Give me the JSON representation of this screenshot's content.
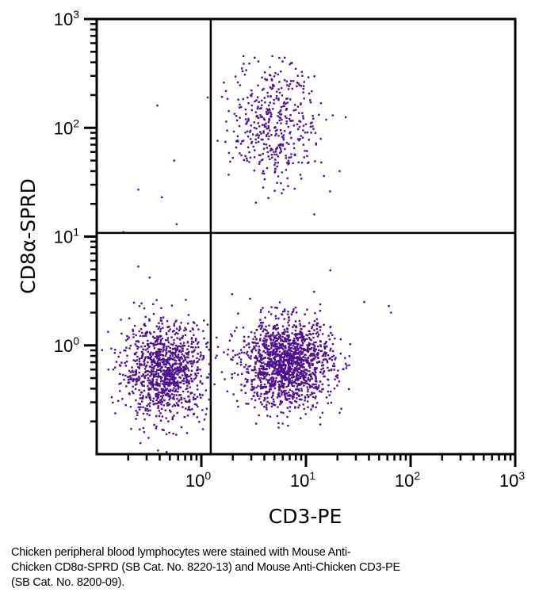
{
  "chart_data": {
    "type": "scatter",
    "subtype": "flow-cytometry-dot-plot",
    "xlabel": "CD3-PE",
    "ylabel": "CD8α-SPRD",
    "xscale": "log",
    "yscale": "log",
    "xlim": [
      0.1,
      1000
    ],
    "ylim": [
      0.1,
      1000
    ],
    "x_ticks": [
      {
        "value": 1,
        "base": "10",
        "exp": "0"
      },
      {
        "value": 10,
        "base": "10",
        "exp": "1"
      },
      {
        "value": 100,
        "base": "10",
        "exp": "2"
      },
      {
        "value": 1000,
        "base": "10",
        "exp": "3"
      }
    ],
    "y_ticks": [
      {
        "value": 1,
        "base": "10",
        "exp": "0"
      },
      {
        "value": 10,
        "base": "10",
        "exp": "1"
      },
      {
        "value": 100,
        "base": "10",
        "exp": "2"
      },
      {
        "value": 1000,
        "base": "10",
        "exp": "3"
      }
    ],
    "quadrant_gates": {
      "x": 1.23,
      "y": 10.8
    },
    "point_color": "#4e0f91",
    "grid": false,
    "legend": "none",
    "populations": [
      {
        "name": "CD3- CD8- (lower-left)",
        "x_center": 0.45,
        "y_center": 0.58,
        "x_spread_decades": 0.2,
        "y_spread_decades": 0.22,
        "count": 1100,
        "x_min": 0.1,
        "x_max": 1.2,
        "y_min": 0.1,
        "y_max": 6
      },
      {
        "name": "CD3+ CD8- (lower-right)",
        "x_center": 6.5,
        "y_center": 0.68,
        "x_spread_decades": 0.22,
        "y_spread_decades": 0.2,
        "count": 1500,
        "x_min": 1.3,
        "x_max": 30,
        "y_min": 0.1,
        "y_max": 10
      },
      {
        "name": "CD3+ CD8+ (upper-right)",
        "x_center": 5.0,
        "y_center": 120,
        "x_spread_decades": 0.2,
        "y_spread_decades": 0.3,
        "count": 430,
        "x_min": 1.4,
        "x_max": 30,
        "y_min": 11,
        "y_max": 480
      }
    ],
    "outliers": [
      {
        "x": 0.38,
        "y": 160
      },
      {
        "x": 0.55,
        "y": 50
      },
      {
        "x": 0.25,
        "y": 27
      },
      {
        "x": 0.42,
        "y": 23
      },
      {
        "x": 0.58,
        "y": 13
      },
      {
        "x": 0.18,
        "y": 11
      },
      {
        "x": 0.25,
        "y": 5.3
      },
      {
        "x": 0.32,
        "y": 4.2
      },
      {
        "x": 1.15,
        "y": 190
      },
      {
        "x": 18,
        "y": 130
      },
      {
        "x": 24,
        "y": 125
      },
      {
        "x": 21,
        "y": 40
      },
      {
        "x": 36,
        "y": 2.5
      },
      {
        "x": 62,
        "y": 2.3
      },
      {
        "x": 65,
        "y": 2.0
      },
      {
        "x": 14,
        "y": 48
      },
      {
        "x": 17,
        "y": 26
      },
      {
        "x": 12,
        "y": 16
      }
    ]
  },
  "caption": {
    "lines": [
      "Chicken peripheral blood lymphocytes were stained with Mouse Anti-",
      "Chicken CD8α-SPRD (SB Cat. No. 8220-13) and Mouse Anti-Chicken CD3-PE",
      "(SB Cat. No. 8200-09)."
    ]
  }
}
